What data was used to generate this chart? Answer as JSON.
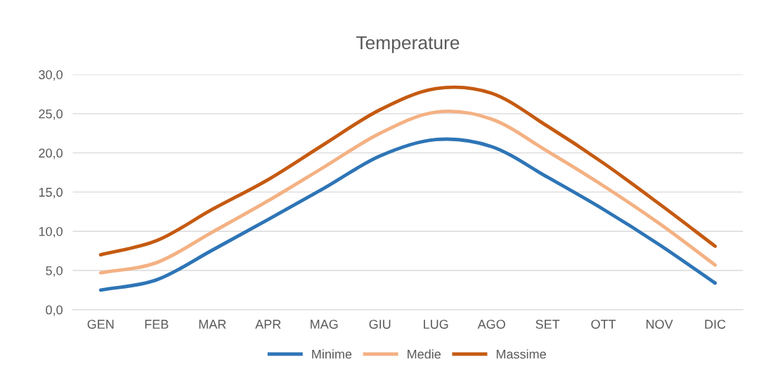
{
  "chart_data": {
    "type": "line",
    "title": "Temperature",
    "categories": [
      "GEN",
      "FEB",
      "MAR",
      "APR",
      "MAG",
      "GIU",
      "LUG",
      "AGO",
      "SET",
      "OTT",
      "NOV",
      "DIC"
    ],
    "series": [
      {
        "name": "Minime",
        "color": "#2e75b6",
        "values": [
          2.5,
          3.8,
          7.6,
          11.5,
          15.5,
          19.6,
          21.7,
          20.8,
          16.9,
          12.8,
          8.3,
          3.4
        ]
      },
      {
        "name": "Medie",
        "color": "#f4b183",
        "values": [
          4.7,
          6.0,
          9.9,
          13.9,
          18.2,
          22.5,
          25.2,
          24.3,
          20.2,
          15.8,
          11.0,
          5.7
        ]
      },
      {
        "name": "Massime",
        "color": "#c55a11",
        "values": [
          7.0,
          8.8,
          12.8,
          16.6,
          21.1,
          25.5,
          28.2,
          27.6,
          23.4,
          18.7,
          13.5,
          8.1
        ]
      }
    ],
    "ylim": [
      0,
      30
    ],
    "yticks": [
      {
        "value": 0,
        "label": "0,0"
      },
      {
        "value": 5,
        "label": "5,0"
      },
      {
        "value": 10,
        "label": "10,0"
      },
      {
        "value": 15,
        "label": "15,0"
      },
      {
        "value": 20,
        "label": "20,0"
      },
      {
        "value": 25,
        "label": "25,0"
      },
      {
        "value": 30,
        "label": "30,0"
      }
    ],
    "grid": "y",
    "legend": "bottom",
    "marker": "none",
    "line_style": "solid"
  }
}
